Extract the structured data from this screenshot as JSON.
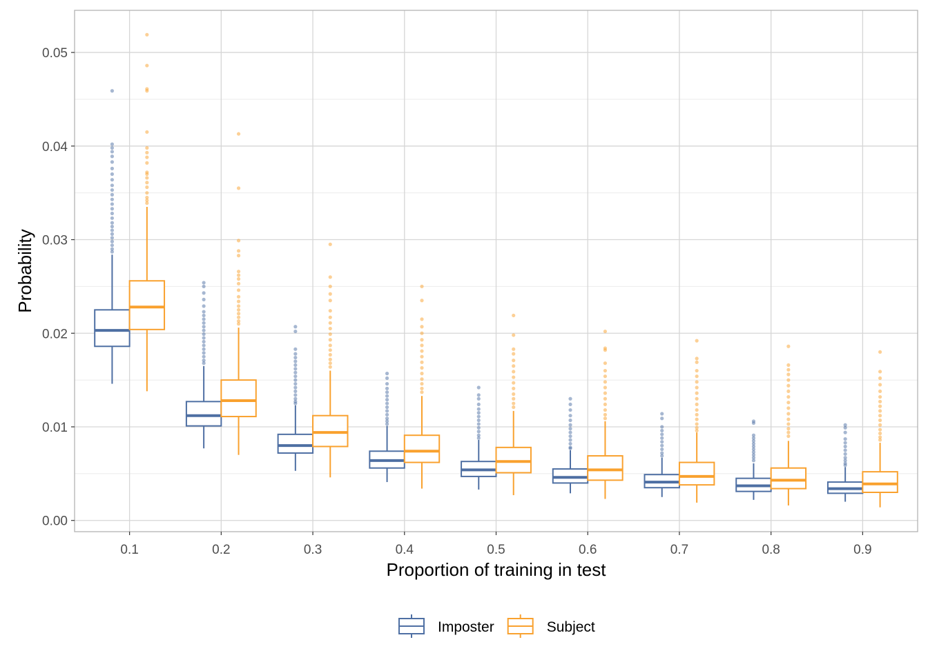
{
  "chart_data": {
    "type": "boxplot",
    "xlabel": "Proportion of training in test",
    "ylabel": "Probability",
    "categories": [
      "0.1",
      "0.2",
      "0.3",
      "0.4",
      "0.5",
      "0.6",
      "0.7",
      "0.8",
      "0.9"
    ],
    "ylim": [
      -0.0012,
      0.0545
    ],
    "yticks": [
      "0.00",
      "0.01",
      "0.02",
      "0.03",
      "0.04",
      "0.05"
    ],
    "grid": true,
    "legend_position": "bottom",
    "series": [
      {
        "name": "Imposter",
        "color": "#4e6fa3",
        "boxes": [
          {
            "min": 0.0146,
            "q1": 0.0186,
            "median": 0.0203,
            "q3": 0.0225,
            "max": 0.0284,
            "outliers": [
              0.0459,
              0.0402,
              0.0398,
              0.0394,
              0.0389,
              0.0383,
              0.0376,
              0.037,
              0.0364,
              0.0358,
              0.0353,
              0.0348,
              0.0343,
              0.0338,
              0.0333,
              0.0328,
              0.0323,
              0.0318,
              0.0314,
              0.031,
              0.0306,
              0.0302,
              0.0298,
              0.0294,
              0.029,
              0.0287
            ]
          },
          {
            "min": 0.0077,
            "q1": 0.0101,
            "median": 0.0112,
            "q3": 0.0127,
            "max": 0.0165,
            "outliers": [
              0.0254,
              0.025,
              0.0243,
              0.0236,
              0.0229,
              0.0223,
              0.0219,
              0.0215,
              0.0211,
              0.0207,
              0.0203,
              0.0199,
              0.0195,
              0.0191,
              0.0187,
              0.0183,
              0.0179,
              0.0175,
              0.0171,
              0.0168
            ]
          },
          {
            "min": 0.0053,
            "q1": 0.0072,
            "median": 0.008,
            "q3": 0.0092,
            "max": 0.0123,
            "outliers": [
              0.0207,
              0.0202,
              0.0183,
              0.0178,
              0.0174,
              0.017,
              0.0166,
              0.0162,
              0.0158,
              0.0154,
              0.015,
              0.0146,
              0.0142,
              0.0138,
              0.0134,
              0.013,
              0.0127,
              0.0125
            ]
          },
          {
            "min": 0.0041,
            "q1": 0.0056,
            "median": 0.0064,
            "q3": 0.0074,
            "max": 0.0101,
            "outliers": [
              0.0157,
              0.0152,
              0.0146,
              0.0141,
              0.0137,
              0.0133,
              0.0129,
              0.0125,
              0.0121,
              0.0117,
              0.0113,
              0.0109,
              0.0106,
              0.0103
            ]
          },
          {
            "min": 0.0033,
            "q1": 0.0047,
            "median": 0.0054,
            "q3": 0.0063,
            "max": 0.0086,
            "outliers": [
              0.0142,
              0.0134,
              0.013,
              0.0124,
              0.0119,
              0.0115,
              0.0111,
              0.0107,
              0.0103,
              0.0099,
              0.0095,
              0.0091,
              0.0088
            ]
          },
          {
            "min": 0.0029,
            "q1": 0.004,
            "median": 0.0046,
            "q3": 0.0055,
            "max": 0.0075,
            "outliers": [
              0.013,
              0.0124,
              0.0118,
              0.0112,
              0.0107,
              0.0102,
              0.0098,
              0.0094,
              0.009,
              0.0086,
              0.0082,
              0.0078,
              0.0077
            ]
          },
          {
            "min": 0.0025,
            "q1": 0.0035,
            "median": 0.0041,
            "q3": 0.0049,
            "max": 0.0067,
            "outliers": [
              0.0114,
              0.0109,
              0.01,
              0.0096,
              0.0092,
              0.0088,
              0.0084,
              0.008,
              0.0076,
              0.0072,
              0.0069
            ]
          },
          {
            "min": 0.0022,
            "q1": 0.0031,
            "median": 0.0037,
            "q3": 0.0045,
            "max": 0.0061,
            "outliers": [
              0.0106,
              0.0104,
              0.0091,
              0.0088,
              0.0085,
              0.0082,
              0.0079,
              0.0076,
              0.0073,
              0.007,
              0.0067,
              0.0064
            ]
          },
          {
            "min": 0.002,
            "q1": 0.0029,
            "median": 0.0034,
            "q3": 0.0041,
            "max": 0.0057,
            "outliers": [
              0.0102,
              0.0099,
              0.0094,
              0.0087,
              0.0083,
              0.0079,
              0.0075,
              0.0071,
              0.0067,
              0.0064,
              0.0061,
              0.0059
            ]
          }
        ]
      },
      {
        "name": "Subject",
        "color": "#f9a12e",
        "boxes": [
          {
            "min": 0.0138,
            "q1": 0.0204,
            "median": 0.0228,
            "q3": 0.0256,
            "max": 0.0335,
            "outliers": [
              0.0519,
              0.0486,
              0.0461,
              0.0459,
              0.0415,
              0.0398,
              0.0393,
              0.0388,
              0.0382,
              0.0372,
              0.037,
              0.0366,
              0.0361,
              0.0356,
              0.035,
              0.0345,
              0.0342,
              0.0339
            ]
          },
          {
            "min": 0.007,
            "q1": 0.0111,
            "median": 0.0128,
            "q3": 0.015,
            "max": 0.0206,
            "outliers": [
              0.0413,
              0.0355,
              0.0299,
              0.0288,
              0.0283,
              0.0266,
              0.0262,
              0.0258,
              0.0253,
              0.0246,
              0.0239,
              0.0234,
              0.0229,
              0.0225,
              0.0221,
              0.0217,
              0.0213,
              0.021
            ]
          },
          {
            "min": 0.0046,
            "q1": 0.0079,
            "median": 0.0094,
            "q3": 0.0112,
            "max": 0.016,
            "outliers": [
              0.0295,
              0.026,
              0.025,
              0.0242,
              0.0235,
              0.0224,
              0.0217,
              0.0211,
              0.0205,
              0.0199,
              0.0193,
              0.0187,
              0.0182,
              0.0177,
              0.0172,
              0.0168,
              0.0164
            ]
          },
          {
            "min": 0.0034,
            "q1": 0.0062,
            "median": 0.0074,
            "q3": 0.0091,
            "max": 0.0133,
            "outliers": [
              0.025,
              0.0235,
              0.0215,
              0.0207,
              0.02,
              0.0193,
              0.0187,
              0.0181,
              0.0175,
              0.0169,
              0.0163,
              0.0157,
              0.0151,
              0.0146,
              0.0141,
              0.0137
            ]
          },
          {
            "min": 0.0027,
            "q1": 0.0051,
            "median": 0.0063,
            "q3": 0.0078,
            "max": 0.0117,
            "outliers": [
              0.0219,
              0.0198,
              0.0183,
              0.0178,
              0.0171,
              0.0165,
              0.0159,
              0.0153,
              0.0147,
              0.0141,
              0.0135,
              0.013,
              0.0125,
              0.0121
            ]
          },
          {
            "min": 0.0023,
            "q1": 0.0043,
            "median": 0.0054,
            "q3": 0.0069,
            "max": 0.0106,
            "outliers": [
              0.0202,
              0.0184,
              0.0182,
              0.0168,
              0.016,
              0.0154,
              0.0148,
              0.0142,
              0.0136,
              0.013,
              0.0124,
              0.0118,
              0.0113,
              0.0109
            ]
          },
          {
            "min": 0.0019,
            "q1": 0.0038,
            "median": 0.0047,
            "q3": 0.0062,
            "max": 0.0094,
            "outliers": [
              0.0192,
              0.0173,
              0.0169,
              0.016,
              0.0154,
              0.0148,
              0.0142,
              0.0136,
              0.013,
              0.0124,
              0.0118,
              0.0113,
              0.0108,
              0.0103,
              0.0099,
              0.0096
            ]
          },
          {
            "min": 0.0016,
            "q1": 0.0034,
            "median": 0.0043,
            "q3": 0.0056,
            "max": 0.0085,
            "outliers": [
              0.0186,
              0.0166,
              0.0161,
              0.0156,
              0.015,
              0.0144,
              0.0138,
              0.0132,
              0.0126,
              0.012,
              0.0114,
              0.0108,
              0.0103,
              0.0098,
              0.0094,
              0.009
            ]
          },
          {
            "min": 0.0014,
            "q1": 0.003,
            "median": 0.0039,
            "q3": 0.0052,
            "max": 0.0083,
            "outliers": [
              0.018,
              0.0159,
              0.0152,
              0.0145,
              0.0138,
              0.0132,
              0.0127,
              0.0122,
              0.0117,
              0.0112,
              0.0107,
              0.0102,
              0.0097,
              0.0093,
              0.0089,
              0.0086
            ]
          }
        ]
      }
    ]
  }
}
